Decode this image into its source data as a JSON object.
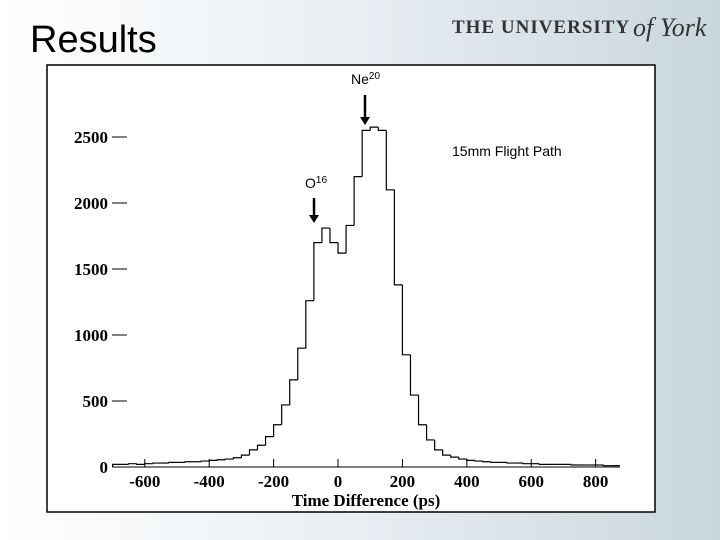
{
  "slide_title": "Results",
  "logo": {
    "main": "THE UNIVERSITY",
    "script": "of York"
  },
  "chart_data": {
    "type": "histogram",
    "xlabel": "Time Difference (ps)",
    "bins": [
      -700,
      -675,
      -650,
      -625,
      -600,
      -575,
      -550,
      -525,
      -500,
      -475,
      -450,
      -425,
      -400,
      -375,
      -350,
      -325,
      -300,
      -275,
      -250,
      -225,
      -200,
      -175,
      -150,
      -125,
      -100,
      -75,
      -50,
      -25,
      0,
      25,
      50,
      75,
      100,
      125,
      150,
      175,
      200,
      225,
      250,
      275,
      300,
      325,
      350,
      375,
      400,
      425,
      450,
      475,
      500,
      525,
      550,
      575,
      600,
      625,
      650,
      675,
      700,
      725,
      750,
      775,
      800,
      825,
      850,
      875
    ],
    "values": [
      20,
      20,
      25,
      20,
      25,
      30,
      30,
      35,
      35,
      40,
      40,
      45,
      50,
      55,
      60,
      70,
      90,
      130,
      165,
      230,
      320,
      470,
      660,
      900,
      1260,
      1700,
      1810,
      1700,
      1620,
      1830,
      2200,
      2550,
      2575,
      2550,
      2100,
      1380,
      850,
      545,
      320,
      205,
      130,
      90,
      75,
      60,
      50,
      45,
      40,
      35,
      35,
      30,
      30,
      25,
      25,
      20,
      20,
      20,
      20,
      15,
      15,
      15,
      15,
      10,
      10
    ],
    "color": "#000000",
    "xlim": [
      -700,
      875
    ],
    "ylim": [
      0,
      2700
    ],
    "xticks": [
      -600,
      -400,
      -200,
      0,
      200,
      400,
      600,
      800
    ],
    "yticks": [
      0,
      500,
      1000,
      1500,
      2000,
      2500
    ],
    "annotations": [
      {
        "label": "Ne",
        "superscript": "20"
      },
      {
        "label": "O",
        "superscript": "16"
      },
      {
        "label": "15mm Flight Path"
      }
    ]
  }
}
